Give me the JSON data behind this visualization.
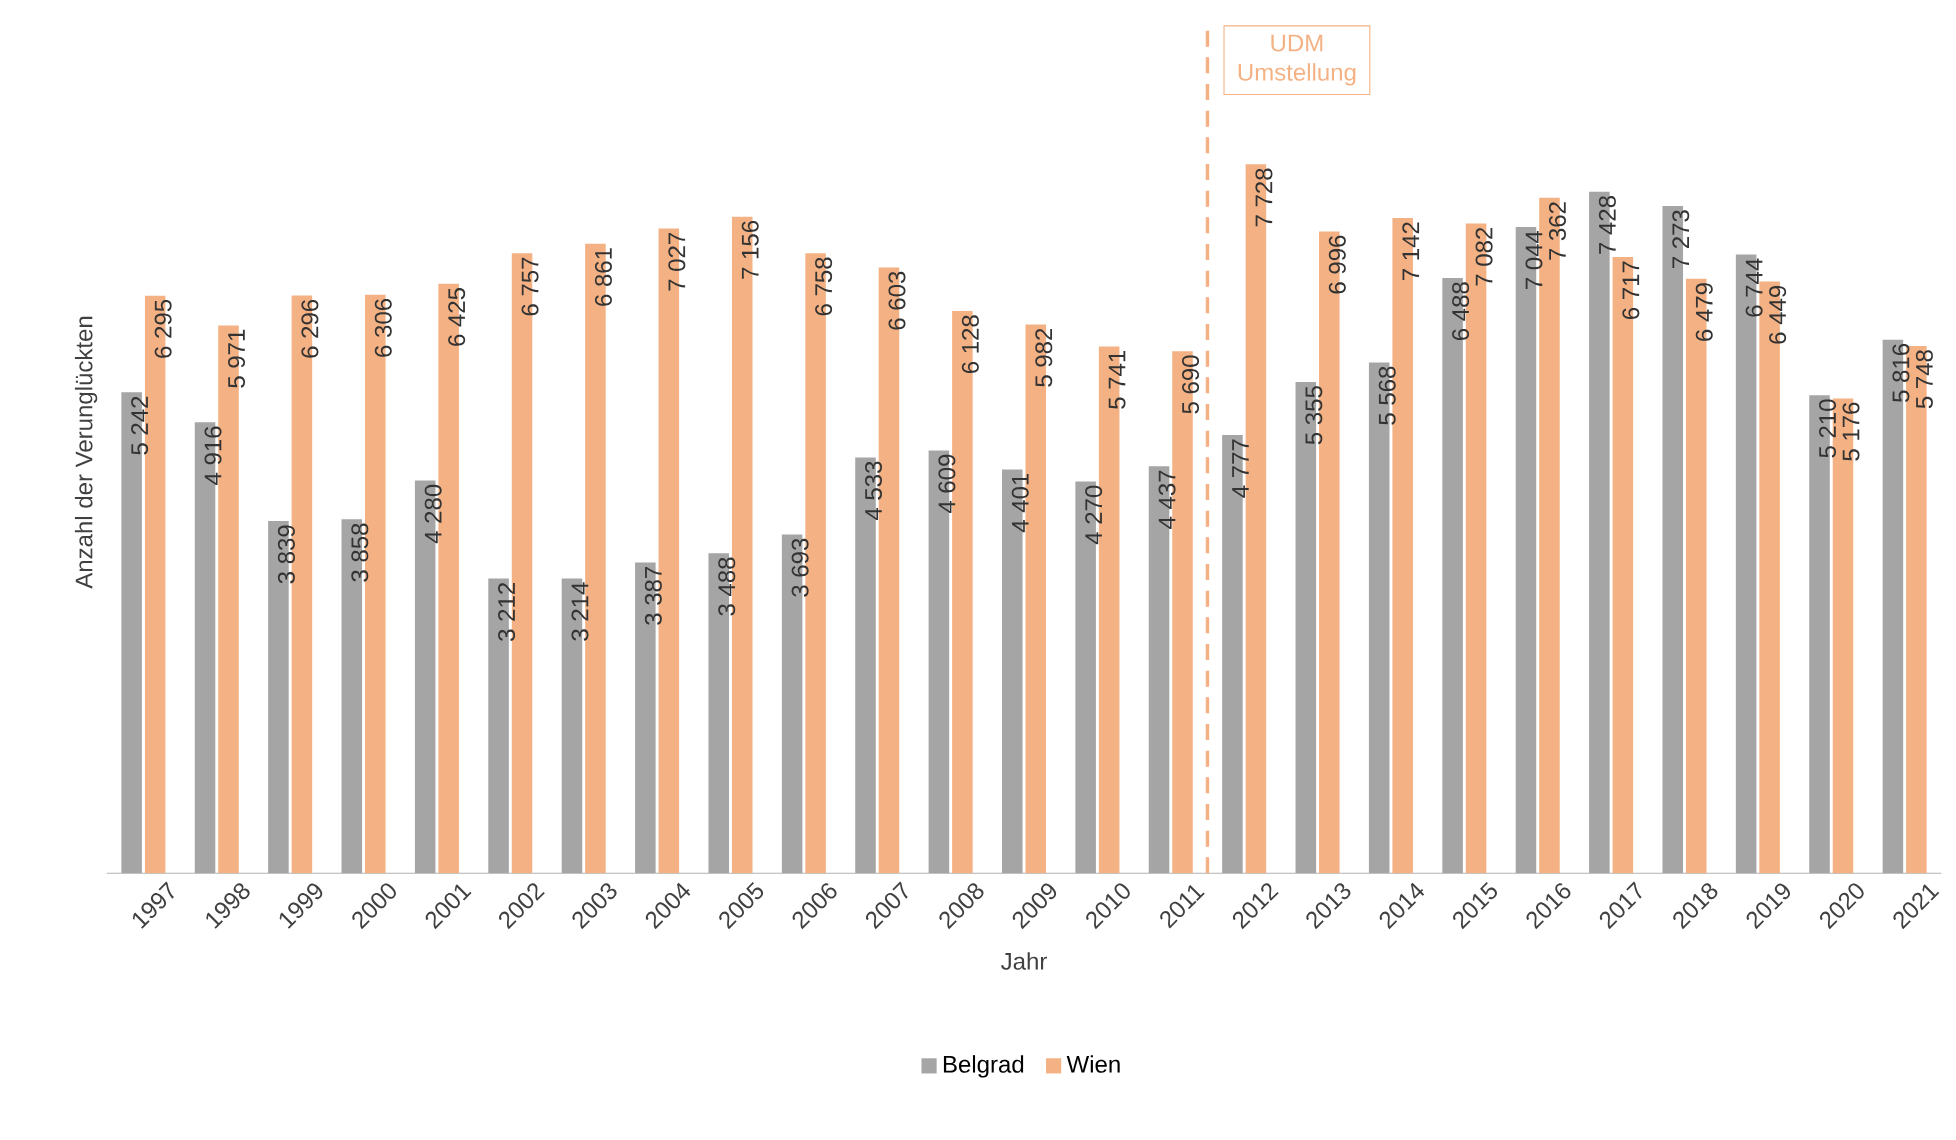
{
  "chart_data": {
    "type": "bar",
    "xlabel": "Jahr",
    "ylabel": "Anzahl der Verunglückten",
    "x": [
      1997,
      1998,
      1999,
      2000,
      2001,
      2002,
      2003,
      2004,
      2005,
      2006,
      2007,
      2008,
      2009,
      2010,
      2011,
      2012,
      2013,
      2014,
      2015,
      2016,
      2017,
      2018,
      2019,
      2020,
      2021
    ],
    "xlim": [
      1996.5,
      2021.5
    ],
    "xticks": [
      1997,
      1998,
      1999,
      2000,
      2001,
      2002,
      2003,
      2004,
      2005,
      2006,
      2007,
      2008,
      2009,
      2010,
      2011,
      2012,
      2013,
      2014,
      2015,
      2016,
      2017,
      2018,
      2019,
      2020,
      2021
    ],
    "ylim": [
      0,
      9300
    ],
    "tick_labels": "x",
    "legend": "bottom",
    "series": [
      {
        "name": "Belgrad",
        "color": "#a5a5a5",
        "values": [
          5242,
          4916,
          3839,
          3858,
          4280,
          3212,
          3214,
          3387,
          3488,
          3693,
          4533,
          4609,
          4401,
          4270,
          4437,
          4777,
          5355,
          5568,
          6488,
          7044,
          7428,
          7273,
          6744,
          5210,
          5816
        ],
        "value_labels": [
          "5 242",
          "4 916",
          "3 839",
          "3 858",
          "4 280",
          "3 212",
          "3 214",
          "3 387",
          "3 488",
          "3 693",
          "4 533",
          "4 609",
          "4 401",
          "4 270",
          "4 437",
          "4 777",
          "5 355",
          "5 568",
          "6 488",
          "7 044",
          "7 428",
          "7 273",
          "6 744",
          "5 210",
          "5 816"
        ]
      },
      {
        "name": "Wien",
        "color": "#f4b183",
        "values": [
          6295,
          5971,
          6296,
          6306,
          6425,
          6757,
          6861,
          7027,
          7156,
          6758,
          6603,
          6128,
          5982,
          5741,
          5690,
          7728,
          6996,
          7142,
          7082,
          7362,
          6717,
          6479,
          6449,
          5176,
          5748
        ],
        "value_labels": [
          "6 295",
          "5 971",
          "6 296",
          "6 306",
          "6 425",
          "6 757",
          "6 861",
          "7 027",
          "7 156",
          "6 758",
          "6 603",
          "6 128",
          "5 982",
          "5 741",
          "5 690",
          "7 728",
          "6 996",
          "7 142",
          "7 082",
          "7 362",
          "6 717",
          "6 479",
          "6 449",
          "5 176",
          "5 748"
        ]
      }
    ],
    "ref_lines": [
      {
        "axis": "x",
        "value": 2011.5,
        "label": "UDM Umstellung",
        "color": "#f4b183",
        "line_style": "dashed"
      }
    ]
  }
}
